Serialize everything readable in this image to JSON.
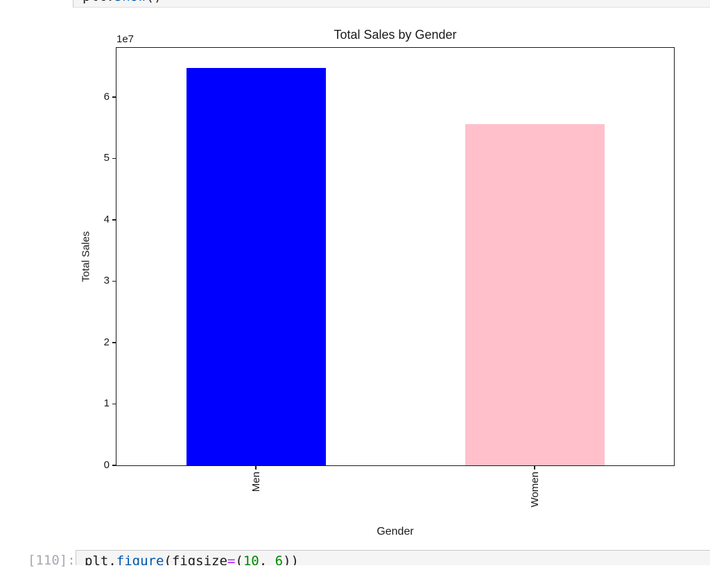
{
  "notebook": {
    "syntax_colors": {
      "default": "#1a1a1a",
      "property": "#0055aa",
      "operator": "#aa22ff",
      "number": "#008800"
    },
    "prompt_color": "#a8a8b3",
    "top_cell": {
      "tokens": [
        {
          "text": "plt.",
          "type": "default"
        },
        {
          "text": "show",
          "type": "property"
        },
        {
          "text": "()",
          "type": "default"
        }
      ]
    },
    "bottom_cell": {
      "prompt": "[110]:",
      "tokens": [
        {
          "text": "plt.",
          "type": "default"
        },
        {
          "text": "figure",
          "type": "property"
        },
        {
          "text": "(figsize",
          "type": "default"
        },
        {
          "text": "=",
          "type": "operator"
        },
        {
          "text": "(",
          "type": "default"
        },
        {
          "text": "10",
          "type": "number"
        },
        {
          "text": ", ",
          "type": "default"
        },
        {
          "text": "6",
          "type": "number"
        },
        {
          "text": "))",
          "type": "default"
        }
      ]
    }
  },
  "chart_data": {
    "type": "bar",
    "title": "Total Sales by Gender",
    "xlabel": "Gender",
    "ylabel": "Total Sales",
    "categories": [
      "Men",
      "Women"
    ],
    "values": [
      64700000,
      55600000
    ],
    "bar_colors": [
      "#0000ff",
      "#ffc0cb"
    ],
    "ylim": [
      0,
      68000000
    ],
    "ytick_step": 10000000,
    "ytick_labels": [
      "0",
      "1",
      "2",
      "3",
      "4",
      "5",
      "6"
    ],
    "offset_label": "1e7",
    "grid": false,
    "legend": false,
    "bar_width_fraction": 0.5,
    "xtick_label_rotation": 90,
    "frame_color": "#1a1a1a",
    "text_color": "#1a1a1a"
  }
}
